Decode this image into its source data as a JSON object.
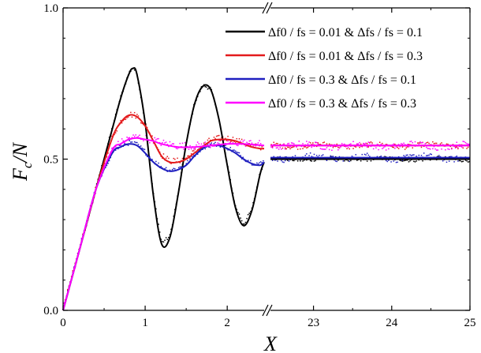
{
  "chart_data": {
    "type": "line",
    "title": "",
    "xlabel": "X",
    "ylabel": "F_c/N",
    "ylabel_main": "F",
    "ylabel_sub": "c",
    "ylabel_rest": "/N",
    "ylim": [
      0.0,
      1.0
    ],
    "yticks": [
      0.0,
      0.5,
      1.0
    ],
    "ytick_labels": [
      "0.0",
      "0.5",
      "1.0"
    ],
    "x_panels": [
      {
        "xlim": [
          0,
          2.45
        ],
        "xticks": [
          0,
          1,
          2
        ],
        "xtick_labels": [
          "0",
          "1",
          "2"
        ]
      },
      {
        "xlim": [
          22.45,
          25
        ],
        "xticks": [
          23,
          24,
          25
        ],
        "xtick_labels": [
          "23",
          "24",
          "25"
        ]
      }
    ],
    "axis_break": "//",
    "grid": false,
    "legend_position": "top-right",
    "series": [
      {
        "name": "Δf0 / fs = 0.01  &  Δfs / fs = 0.1",
        "color": "#000000",
        "panel1": {
          "x": [
            0,
            0.2,
            0.4,
            0.6,
            0.7,
            0.8,
            0.85,
            0.9,
            1.0,
            1.1,
            1.2,
            1.3,
            1.4,
            1.5,
            1.6,
            1.7,
            1.8,
            1.9,
            2.0,
            2.1,
            2.2,
            2.3,
            2.4,
            2.45
          ],
          "y": [
            0,
            0.2,
            0.4,
            0.6,
            0.7,
            0.78,
            0.8,
            0.78,
            0.62,
            0.38,
            0.22,
            0.24,
            0.38,
            0.55,
            0.68,
            0.74,
            0.73,
            0.63,
            0.48,
            0.34,
            0.28,
            0.33,
            0.45,
            0.49
          ]
        },
        "panel2": {
          "x": [
            22.45,
            25
          ],
          "y": [
            0.5,
            0.5
          ]
        }
      },
      {
        "name": "Δf0 / fs = 0.01  &  Δfs / fs = 0.3",
        "color": "#e31a1c",
        "panel1": {
          "x": [
            0,
            0.2,
            0.4,
            0.6,
            0.7,
            0.8,
            0.9,
            1.0,
            1.1,
            1.2,
            1.3,
            1.4,
            1.5,
            1.6,
            1.7,
            1.8,
            1.9,
            2.0,
            2.1,
            2.2,
            2.3,
            2.4,
            2.45
          ],
          "y": [
            0,
            0.2,
            0.4,
            0.57,
            0.62,
            0.645,
            0.64,
            0.61,
            0.56,
            0.51,
            0.49,
            0.49,
            0.5,
            0.52,
            0.54,
            0.56,
            0.565,
            0.565,
            0.56,
            0.55,
            0.54,
            0.535,
            0.535
          ]
        },
        "panel2": {
          "x": [
            22.45,
            25
          ],
          "y": [
            0.545,
            0.545
          ]
        }
      },
      {
        "name": "Δf0 / fs = 0.3    &  Δfs / fs = 0.1",
        "color": "#1f1fbf",
        "panel1": {
          "x": [
            0,
            0.2,
            0.4,
            0.6,
            0.7,
            0.8,
            0.9,
            1.0,
            1.1,
            1.2,
            1.3,
            1.4,
            1.5,
            1.6,
            1.7,
            1.8,
            1.9,
            2.0,
            2.1,
            2.2,
            2.3,
            2.4,
            2.45
          ],
          "y": [
            0,
            0.2,
            0.4,
            0.52,
            0.54,
            0.55,
            0.545,
            0.52,
            0.49,
            0.47,
            0.46,
            0.465,
            0.48,
            0.51,
            0.535,
            0.545,
            0.545,
            0.535,
            0.52,
            0.5,
            0.485,
            0.48,
            0.49
          ]
        },
        "panel2": {
          "x": [
            22.45,
            25
          ],
          "y": [
            0.505,
            0.505
          ]
        }
      },
      {
        "name": "Δf0 / fs = 0.3    &  Δfs / fs = 0.3",
        "color": "#ff00ff",
        "panel1": {
          "x": [
            0,
            0.2,
            0.4,
            0.6,
            0.7,
            0.8,
            0.9,
            1.0,
            1.1,
            1.2,
            1.4,
            1.6,
            1.8,
            2.0,
            2.2,
            2.45
          ],
          "y": [
            0,
            0.2,
            0.4,
            0.53,
            0.55,
            0.565,
            0.57,
            0.565,
            0.56,
            0.55,
            0.54,
            0.54,
            0.545,
            0.55,
            0.55,
            0.545
          ]
        },
        "panel2": {
          "x": [
            22.45,
            25
          ],
          "y": [
            0.545,
            0.545
          ]
        }
      }
    ]
  }
}
